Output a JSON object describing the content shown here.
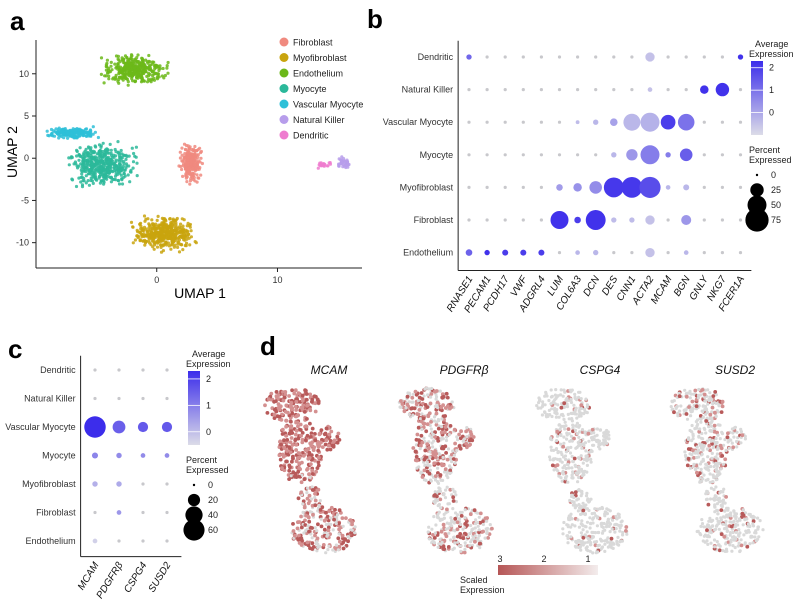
{
  "panel_labels": [
    "a",
    "b",
    "c",
    "d"
  ],
  "chart_data": [
    {
      "id": "a",
      "type": "scatter",
      "title": "",
      "xlabel": "UMAP 1",
      "ylabel": "UMAP 2",
      "xlim": [
        -10,
        17
      ],
      "ylim": [
        -13,
        14
      ],
      "xticks": [
        0,
        10
      ],
      "yticks": [
        10,
        5,
        0,
        -5,
        -10
      ],
      "legend_position": "right",
      "series": [
        {
          "name": "Fibroblast",
          "color": "#F08A7F",
          "center": [
            2.8,
            -0.5
          ],
          "spread": [
            1.1,
            2.7
          ],
          "points": 260
        },
        {
          "name": "Myofibroblast",
          "color": "#C9A40E",
          "center": [
            0.6,
            -9.0
          ],
          "spread": [
            3.2,
            2.5
          ],
          "points": 420
        },
        {
          "name": "Endothelium",
          "color": "#6CB81A",
          "center": [
            -1.8,
            10.5
          ],
          "spread": [
            3.3,
            2.2
          ],
          "points": 380
        },
        {
          "name": "Myocyte",
          "color": "#2BB89A",
          "center": [
            -4.5,
            -0.8
          ],
          "spread": [
            3.4,
            3.2
          ],
          "points": 460
        },
        {
          "name": "Vascular Myocyte",
          "color": "#2EC0D8",
          "center": [
            -7.0,
            3.0
          ],
          "spread": [
            2.8,
            0.9
          ],
          "points": 180
        },
        {
          "name": "Natural Killer",
          "color": "#B79DEB",
          "center": [
            15.5,
            -0.6
          ],
          "spread": [
            0.7,
            0.9
          ],
          "points": 40
        },
        {
          "name": "Dendritic",
          "color": "#EE7CCF",
          "center": [
            13.8,
            -0.8
          ],
          "spread": [
            0.9,
            0.5
          ],
          "points": 25
        }
      ]
    },
    {
      "id": "b",
      "type": "dot",
      "genes": [
        "RNASE1",
        "PECAM1",
        "PCDH17",
        "VWF",
        "ADGRL4",
        "LUM",
        "COL6A3",
        "DCN",
        "DES",
        "CNN1",
        "ACTA2",
        "MCAM",
        "BGN",
        "GNLY",
        "NKG7",
        "FCER1A"
      ],
      "cell_types": [
        "Dendritic",
        "Natural Killer",
        "Vascular Myocyte",
        "Myocyte",
        "Myofibroblast",
        "Fibroblast",
        "Endothelium"
      ],
      "avg_legend_title": "Average Expression",
      "avg_ticks": [
        2,
        1,
        0
      ],
      "avg_range": [
        -1,
        2.3
      ],
      "pct_legend_title": "Percent Expressed",
      "pct_ticks": [
        0,
        25,
        50,
        75
      ],
      "pct_max": 80,
      "points": [
        {
          "cell": "Dendritic",
          "gene": "RNASE1",
          "pct": 4,
          "avg": 1.2
        },
        {
          "cell": "Dendritic",
          "gene": "ACTA2",
          "pct": 12,
          "avg": -0.5
        },
        {
          "cell": "Dendritic",
          "gene": "FCER1A",
          "pct": 4,
          "avg": 2.2
        },
        {
          "cell": "Natural Killer",
          "gene": "GNLY",
          "pct": 10,
          "avg": 2.2
        },
        {
          "cell": "Natural Killer",
          "gene": "NKG7",
          "pct": 25,
          "avg": 2.2
        },
        {
          "cell": "Natural Killer",
          "gene": "ACTA2",
          "pct": 3,
          "avg": -0.5
        },
        {
          "cell": "Vascular Myocyte",
          "gene": "COL6A3",
          "pct": 2,
          "avg": -0.4
        },
        {
          "cell": "Vascular Myocyte",
          "gene": "DCN",
          "pct": 4,
          "avg": -0.3
        },
        {
          "cell": "Vascular Myocyte",
          "gene": "DES",
          "pct": 8,
          "avg": 0.1
        },
        {
          "cell": "Vascular Myocyte",
          "gene": "CNN1",
          "pct": 40,
          "avg": -0.3
        },
        {
          "cell": "Vascular Myocyte",
          "gene": "ACTA2",
          "pct": 50,
          "avg": -0.2
        },
        {
          "cell": "Vascular Myocyte",
          "gene": "MCAM",
          "pct": 30,
          "avg": 2.0
        },
        {
          "cell": "Vascular Myocyte",
          "gene": "BGN",
          "pct": 38,
          "avg": 1.0
        },
        {
          "cell": "Myocyte",
          "gene": "DES",
          "pct": 4,
          "avg": -0.3
        },
        {
          "cell": "Myocyte",
          "gene": "CNN1",
          "pct": 18,
          "avg": 0.3
        },
        {
          "cell": "Myocyte",
          "gene": "ACTA2",
          "pct": 50,
          "avg": 0.8
        },
        {
          "cell": "Myocyte",
          "gene": "MCAM",
          "pct": 4,
          "avg": 0.8
        },
        {
          "cell": "Myocyte",
          "gene": "BGN",
          "pct": 22,
          "avg": 1.4
        },
        {
          "cell": "Myofibroblast",
          "gene": "LUM",
          "pct": 6,
          "avg": 0.2
        },
        {
          "cell": "Myofibroblast",
          "gene": "COL6A3",
          "pct": 10,
          "avg": 0.4
        },
        {
          "cell": "Myofibroblast",
          "gene": "DCN",
          "pct": 22,
          "avg": 0.5
        },
        {
          "cell": "Myofibroblast",
          "gene": "DES",
          "pct": 55,
          "avg": 2.1
        },
        {
          "cell": "Myofibroblast",
          "gene": "CNN1",
          "pct": 60,
          "avg": 2.1
        },
        {
          "cell": "Myofibroblast",
          "gene": "ACTA2",
          "pct": 62,
          "avg": 1.7
        },
        {
          "cell": "Myofibroblast",
          "gene": "MCAM",
          "pct": 3,
          "avg": -0.3
        },
        {
          "cell": "Myofibroblast",
          "gene": "BGN",
          "pct": 5,
          "avg": -0.3
        },
        {
          "cell": "Fibroblast",
          "gene": "LUM",
          "pct": 45,
          "avg": 2.2
        },
        {
          "cell": "Fibroblast",
          "gene": "COL6A3",
          "pct": 6,
          "avg": 2.0
        },
        {
          "cell": "Fibroblast",
          "gene": "DCN",
          "pct": 55,
          "avg": 2.2
        },
        {
          "cell": "Fibroblast",
          "gene": "DES",
          "pct": 4,
          "avg": -0.4
        },
        {
          "cell": "Fibroblast",
          "gene": "CNN1",
          "pct": 4,
          "avg": -0.4
        },
        {
          "cell": "Fibroblast",
          "gene": "ACTA2",
          "pct": 12,
          "avg": -0.5
        },
        {
          "cell": "Fibroblast",
          "gene": "BGN",
          "pct": 14,
          "avg": 0.3
        },
        {
          "cell": "Endothelium",
          "gene": "RNASE1",
          "pct": 6,
          "avg": 1.3
        },
        {
          "cell": "Endothelium",
          "gene": "PECAM1",
          "pct": 4,
          "avg": 2.2
        },
        {
          "cell": "Endothelium",
          "gene": "PCDH17",
          "pct": 5,
          "avg": 2.0
        },
        {
          "cell": "Endothelium",
          "gene": "VWF",
          "pct": 5,
          "avg": 2.0
        },
        {
          "cell": "Endothelium",
          "gene": "ADGRL4",
          "pct": 5,
          "avg": 2.0
        },
        {
          "cell": "Endothelium",
          "gene": "COL6A3",
          "pct": 3,
          "avg": -0.3
        },
        {
          "cell": "Endothelium",
          "gene": "DCN",
          "pct": 4,
          "avg": -0.3
        },
        {
          "cell": "Endothelium",
          "gene": "ACTA2",
          "pct": 12,
          "avg": -0.5
        },
        {
          "cell": "Endothelium",
          "gene": "BGN",
          "pct": 3,
          "avg": -0.3
        }
      ]
    },
    {
      "id": "c",
      "type": "dot",
      "genes": [
        "MCAM",
        "PDGFRβ",
        "CSPG4",
        "SUSD2"
      ],
      "cell_types": [
        "Dendritic",
        "Natural Killer",
        "Vascular Myocyte",
        "Myocyte",
        "Myofibroblast",
        "Fibroblast",
        "Endothelium"
      ],
      "avg_legend_title": "Average Expression",
      "avg_ticks": [
        2,
        1,
        0
      ],
      "avg_range": [
        -0.5,
        2.3
      ],
      "pct_legend_title": "Percent Expressed",
      "pct_ticks": [
        0,
        20,
        40,
        60
      ],
      "pct_max": 65,
      "points": [
        {
          "cell": "Vascular Myocyte",
          "gene": "MCAM",
          "pct": 62,
          "avg": 2.3
        },
        {
          "cell": "Vascular Myocyte",
          "gene": "PDGFRβ",
          "pct": 22,
          "avg": 1.5
        },
        {
          "cell": "Vascular Myocyte",
          "gene": "CSPG4",
          "pct": 14,
          "avg": 1.6
        },
        {
          "cell": "Vascular Myocyte",
          "gene": "SUSD2",
          "pct": 14,
          "avg": 1.6
        },
        {
          "cell": "Myocyte",
          "gene": "MCAM",
          "pct": 5,
          "avg": 0.9
        },
        {
          "cell": "Myocyte",
          "gene": "PDGFRβ",
          "pct": 4,
          "avg": 0.8
        },
        {
          "cell": "Myocyte",
          "gene": "CSPG4",
          "pct": 3,
          "avg": 0.8
        },
        {
          "cell": "Myocyte",
          "gene": "SUSD2",
          "pct": 3,
          "avg": 0.8
        },
        {
          "cell": "Myofibroblast",
          "gene": "MCAM",
          "pct": 4,
          "avg": 0.2
        },
        {
          "cell": "Myofibroblast",
          "gene": "PDGFRβ",
          "pct": 4,
          "avg": 0.3
        },
        {
          "cell": "Fibroblast",
          "gene": "PDGFRβ",
          "pct": 3,
          "avg": 0.6
        },
        {
          "cell": "Endothelium",
          "gene": "MCAM",
          "pct": 3,
          "avg": -0.3
        }
      ]
    },
    {
      "id": "d",
      "type": "feature_plot",
      "features": [
        "MCAM",
        "PDGFRβ",
        "CSPG4",
        "SUSD2"
      ],
      "feature_intensity": [
        0.9,
        0.55,
        0.12,
        0.22
      ],
      "legend_title": "Scaled Expression",
      "legend_ticks": [
        3,
        2,
        1
      ]
    }
  ]
}
